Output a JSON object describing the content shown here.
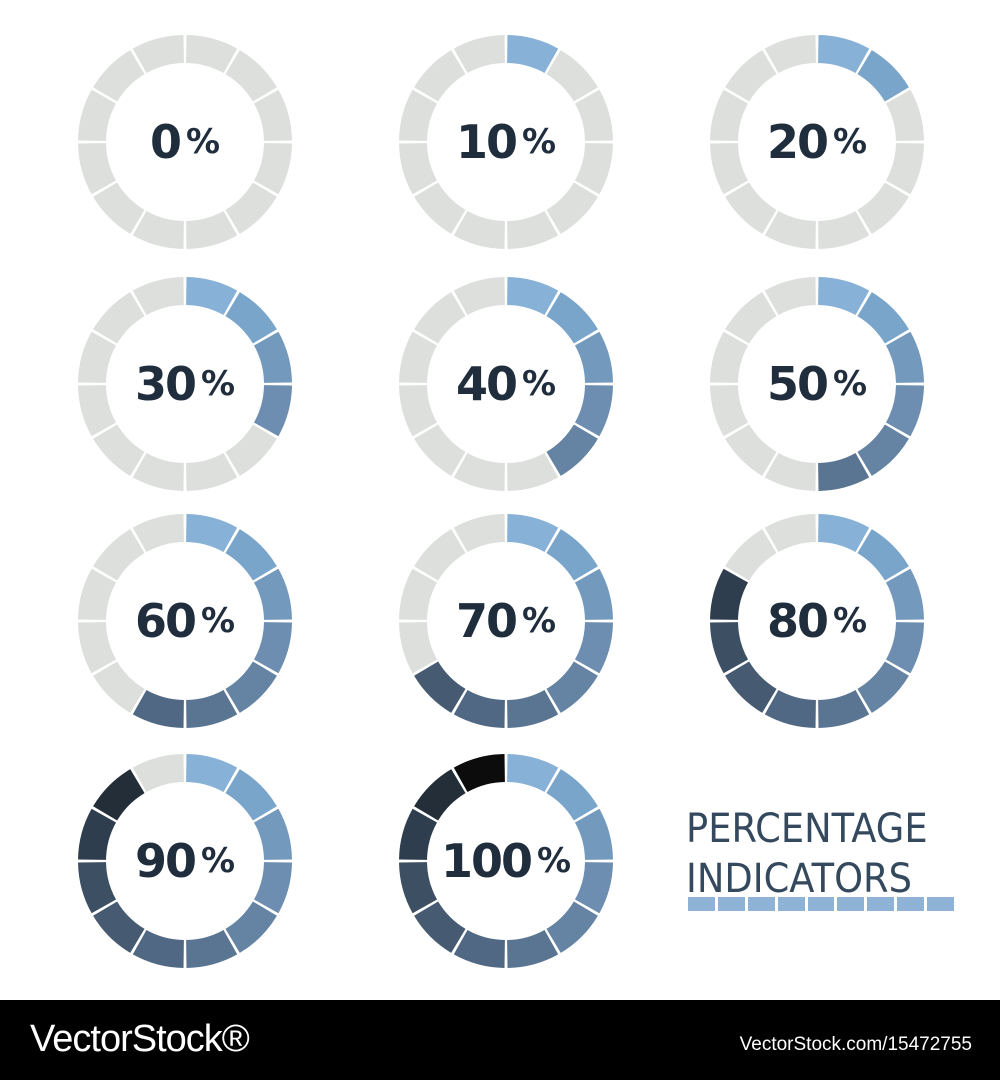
{
  "gauges": [
    {
      "number": "0",
      "percent_sign": "%",
      "progress": 0
    },
    {
      "number": "10",
      "percent_sign": "%",
      "progress": 0.1
    },
    {
      "number": "20",
      "percent_sign": "%",
      "progress": 0.2
    },
    {
      "number": "30",
      "percent_sign": "%",
      "progress": 0.3
    },
    {
      "number": "40",
      "percent_sign": "%",
      "progress": 0.4
    },
    {
      "number": "50",
      "percent_sign": "%",
      "progress": 0.5
    },
    {
      "number": "60",
      "percent_sign": "%",
      "progress": 0.6
    },
    {
      "number": "70",
      "percent_sign": "%",
      "progress": 0.7
    },
    {
      "number": "80",
      "percent_sign": "%",
      "progress": 0.8
    },
    {
      "number": "90",
      "percent_sign": "%",
      "progress": 0.9
    },
    {
      "number": "100",
      "percent_sign": "%",
      "progress": 1.0
    }
  ],
  "segment_colors": [
    "#87b1d7",
    "#7aa5cb",
    "#7399bd",
    "#6d8eb0",
    "#6583a2",
    "#5a7592",
    "#506883",
    "#465b72",
    "#3d4f62",
    "#2f3e4e",
    "#232e39",
    "#0c0c0c"
  ],
  "empty_color": "#dcdfdc",
  "title": {
    "line1": "PERCENTAGE",
    "line2": "INDICATORS"
  },
  "footer": {
    "logo": "VectorStock®",
    "url": "VectorStock.com/15472755"
  }
}
